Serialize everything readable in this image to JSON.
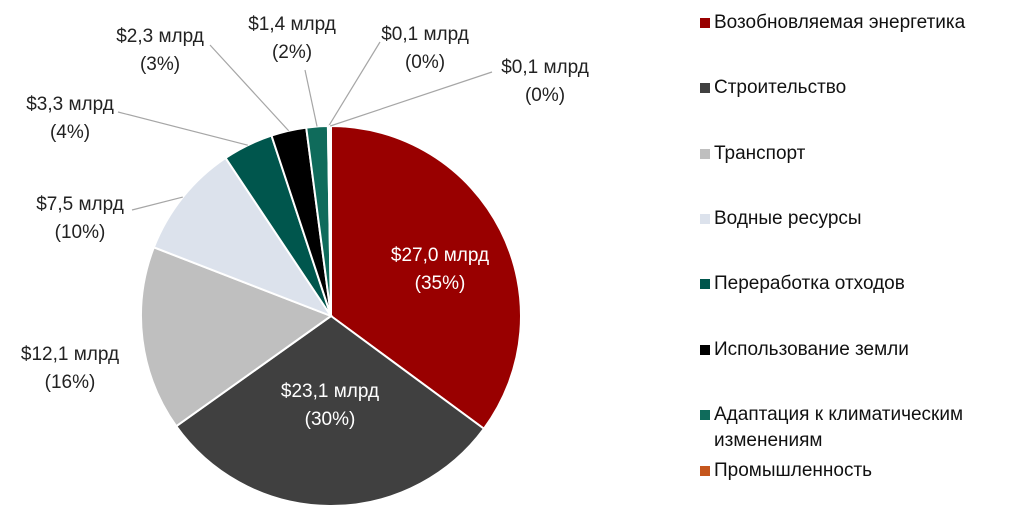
{
  "chart_data": {
    "type": "pie",
    "categories": [
      "Возобновляемая энергетика",
      "Строительство",
      "Транспорт",
      "Водные ресурсы",
      "Переработка отходов",
      "Использование земли",
      "Адаптация к климатическим изменениям",
      "Промышленность",
      null
    ],
    "values": [
      27.0,
      23.1,
      12.1,
      7.5,
      3.3,
      2.3,
      1.4,
      0.1,
      0.1
    ],
    "value_labels": [
      [
        "$27,0 млрд",
        "(35%)"
      ],
      [
        "$23,1 млрд",
        "(30%)"
      ],
      [
        "$12,1 млрд",
        "(16%)"
      ],
      [
        "$7,5 млрд",
        "(10%)"
      ],
      [
        "$3,3 млрд",
        "(4%)"
      ],
      [
        "$2,3 млрд",
        "(3%)"
      ],
      [
        "$1,4 млрд",
        "(2%)"
      ],
      [
        "$0,1 млрд",
        "(0%)"
      ],
      [
        "$0,1 млрд",
        "(0%)"
      ]
    ],
    "colors": [
      "#990000",
      "#404040",
      "#bfbfbf",
      "#dce2ec",
      "#00564d",
      "#000000",
      "#0f6b5b",
      "#c5561d",
      "#8faadc"
    ],
    "legend": "right"
  }
}
